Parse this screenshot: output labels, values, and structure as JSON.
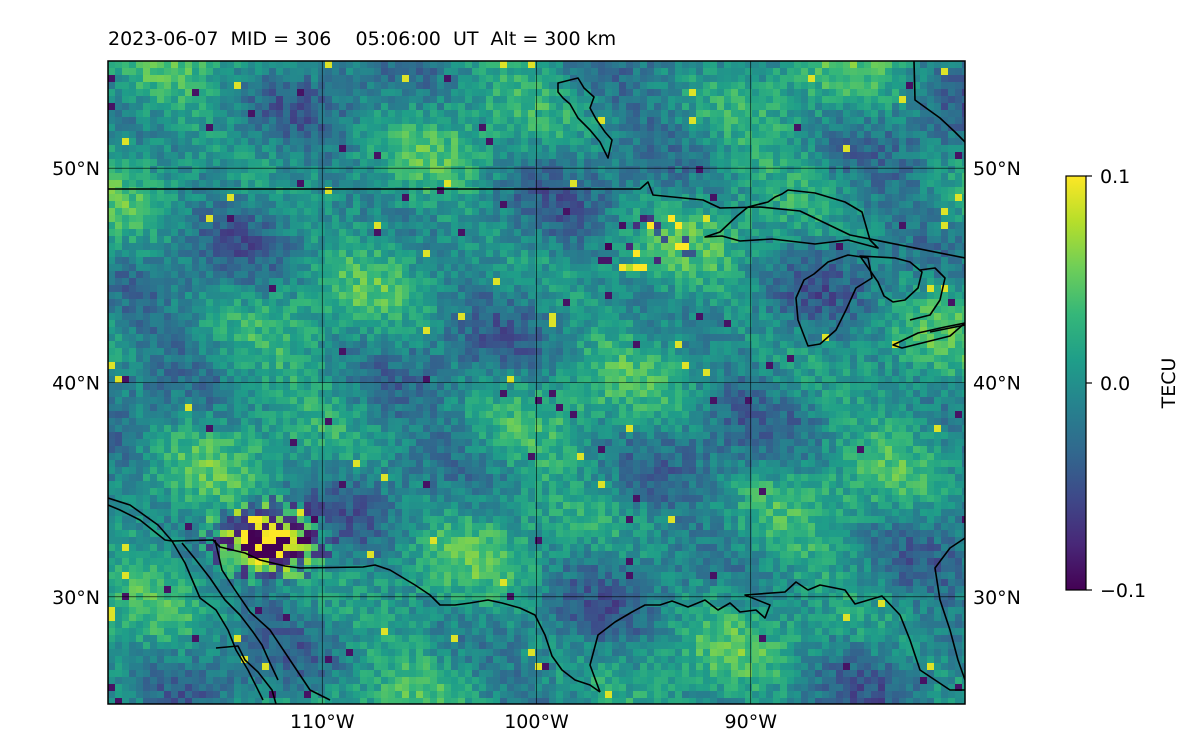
{
  "title": "2023-06-07  MID = 306    05:06:00  UT  Alt = 300 km",
  "map": {
    "projection": "PlateCarree",
    "lon_range": [
      -120,
      -80
    ],
    "lat_range": [
      25,
      55
    ],
    "gridlines": true,
    "lon_ticks": [
      {
        "lon": -110,
        "label": "110°W"
      },
      {
        "lon": -100,
        "label": "100°W"
      },
      {
        "lon": -90,
        "label": "90°W"
      }
    ],
    "lat_ticks": [
      {
        "lat": 50,
        "label": "50°N"
      },
      {
        "lat": 40,
        "label": "40°N"
      },
      {
        "lat": 30,
        "label": "30°N"
      }
    ],
    "field": "TEC perturbation (mostly near 0 TECU, noisy, strongest anomalies over the southwest)",
    "coastlines_and_borders": true
  },
  "colorbar": {
    "label": "TECU",
    "colormap": "viridis",
    "vmin": -0.1,
    "vmax": 0.1,
    "ticks": [
      {
        "value": 0.1,
        "label": "0.1"
      },
      {
        "value": 0.0,
        "label": "0.0"
      },
      {
        "value": -0.1,
        "label": "−0.1"
      }
    ]
  },
  "colors": {
    "viridis_stops": [
      "#440154",
      "#482878",
      "#3e4989",
      "#31688e",
      "#26828e",
      "#1f9e89",
      "#35b779",
      "#6ece58",
      "#b5de2b",
      "#fde725"
    ]
  }
}
